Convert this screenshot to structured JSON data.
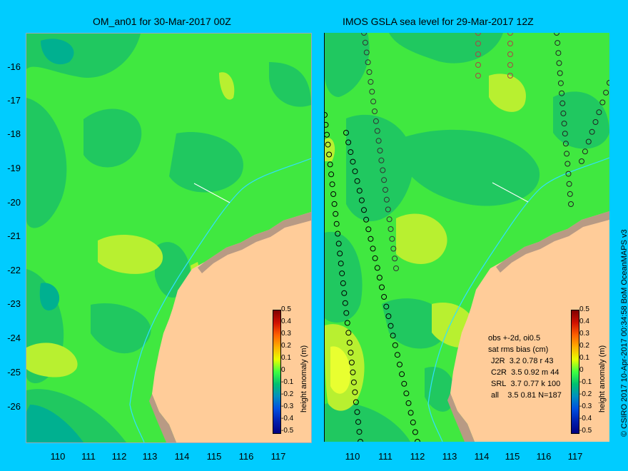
{
  "left_title": "OM_an01 for 30-Mar-2017 00Z",
  "right_title": "IMOS GSLA sea level  for 29-Mar-2017 12Z",
  "y_ticks": [
    "-16",
    "-17",
    "-18",
    "-19",
    "-20",
    "-21",
    "-22",
    "-23",
    "-24",
    "-25",
    "-26"
  ],
  "x_ticks": [
    "110",
    "111",
    "112",
    "113",
    "114",
    "115",
    "116",
    "117"
  ],
  "colorbar": {
    "title": "height anomaly (m)",
    "labels": [
      "0.5",
      "0.4",
      "0.3",
      "0.2",
      "0.1",
      "0",
      "-0.1",
      "-0.2",
      "-0.3",
      "-0.4",
      "-0.5"
    ],
    "colors": [
      "#800000",
      "#d01000",
      "#ff6000",
      "#ffb000",
      "#e8ff00",
      "#40ff40",
      "#00c070",
      "#0090c0",
      "#0050e0",
      "#0020b0",
      "#000080"
    ]
  },
  "legend": {
    "line1": "obs +-2d, oi0.5",
    "line2": "sat rms bias (cm)",
    "rows": [
      {
        "sat": "J2R",
        "rms": "3.2",
        "bias": "0.78",
        "code": "r",
        "n": "43"
      },
      {
        "sat": "C2R",
        "rms": "3.5",
        "bias": "0.92",
        "code": "m",
        "n": "44"
      },
      {
        "sat": "SRL",
        "rms": "3.7",
        "bias": "0.77",
        "code": "k",
        "n": "100"
      },
      {
        "sat": "all",
        "rms": "3.5",
        "bias": "0.81",
        "code": "",
        "n": "N=187"
      }
    ]
  },
  "credit": "© CSIRO 2017   10-Apr-2017 00:34:58 BoM OceanMAPS v3",
  "colors": {
    "background": "#00ccff",
    "land": "#ffcc99",
    "reef": "#b89a84",
    "sea_base": "#40e840",
    "sea_low": "#20c860",
    "sea_high": "#c8f020"
  },
  "map_extent": {
    "lon_min": 109.1,
    "lon_max": 118.0,
    "lat_min": -27.0,
    "lat_max": -15.0
  }
}
